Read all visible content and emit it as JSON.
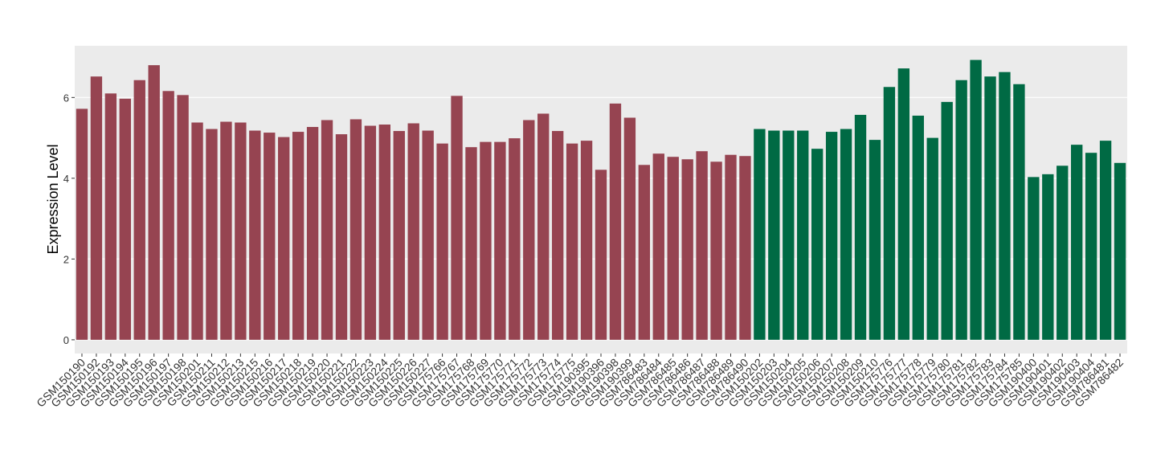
{
  "chart_data": {
    "type": "bar",
    "y_label": "Expression Level",
    "categories": [
      "GSM150190",
      "GSM150192",
      "GSM150193",
      "GSM150194",
      "GSM150195",
      "GSM150196",
      "GSM150197",
      "GSM150198",
      "GSM150201",
      "GSM150211",
      "GSM150212",
      "GSM150213",
      "GSM150215",
      "GSM150216",
      "GSM150217",
      "GSM150218",
      "GSM150219",
      "GSM150220",
      "GSM150221",
      "GSM150222",
      "GSM150223",
      "GSM150224",
      "GSM150225",
      "GSM150226",
      "GSM150227",
      "GSM175766",
      "GSM175767",
      "GSM175768",
      "GSM175769",
      "GSM175770",
      "GSM175771",
      "GSM175772",
      "GSM175773",
      "GSM175774",
      "GSM175775",
      "GSM190395",
      "GSM190396",
      "GSM190398",
      "GSM190399",
      "GSM786483",
      "GSM786484",
      "GSM786485",
      "GSM786486",
      "GSM786487",
      "GSM786488",
      "GSM786489",
      "GSM786490",
      "GSM150202",
      "GSM150203",
      "GSM150204",
      "GSM150205",
      "GSM150206",
      "GSM150207",
      "GSM150208",
      "GSM150209",
      "GSM150210",
      "GSM175776",
      "GSM175777",
      "GSM175778",
      "GSM175779",
      "GSM175780",
      "GSM175781",
      "GSM175782",
      "GSM175783",
      "GSM175784",
      "GSM175785",
      "GSM190400",
      "GSM190401",
      "GSM190402",
      "GSM190403",
      "GSM190404",
      "GSM786481",
      "GSM786482"
    ],
    "values": [
      5.72,
      6.52,
      6.1,
      5.97,
      6.43,
      6.8,
      6.16,
      6.06,
      5.38,
      5.22,
      5.4,
      5.38,
      5.18,
      5.13,
      5.02,
      5.15,
      5.27,
      5.44,
      5.09,
      5.46,
      5.3,
      5.33,
      5.17,
      5.36,
      5.18,
      4.86,
      6.04,
      4.77,
      4.9,
      4.9,
      4.99,
      5.44,
      5.6,
      5.17,
      4.86,
      4.93,
      4.21,
      5.85,
      5.5,
      4.33,
      4.61,
      4.53,
      4.47,
      4.67,
      4.41,
      4.58,
      4.55,
      5.22,
      5.18,
      5.18,
      5.18,
      4.73,
      5.15,
      5.22,
      5.57,
      4.95,
      6.26,
      6.72,
      5.55,
      5.0,
      5.89,
      6.43,
      6.93,
      6.52,
      6.63,
      6.33,
      4.03,
      4.1,
      4.31,
      4.83,
      4.63,
      4.93,
      4.38
    ],
    "colors": [
      "#964451",
      "#964451",
      "#964451",
      "#964451",
      "#964451",
      "#964451",
      "#964451",
      "#964451",
      "#964451",
      "#964451",
      "#964451",
      "#964451",
      "#964451",
      "#964451",
      "#964451",
      "#964451",
      "#964451",
      "#964451",
      "#964451",
      "#964451",
      "#964451",
      "#964451",
      "#964451",
      "#964451",
      "#964451",
      "#964451",
      "#964451",
      "#964451",
      "#964451",
      "#964451",
      "#964451",
      "#964451",
      "#964451",
      "#964451",
      "#964451",
      "#964451",
      "#964451",
      "#964451",
      "#964451",
      "#964451",
      "#964451",
      "#964451",
      "#964451",
      "#964451",
      "#964451",
      "#964451",
      "#964451",
      "#006a44",
      "#006a44",
      "#006a44",
      "#006a44",
      "#006a44",
      "#006a44",
      "#006a44",
      "#006a44",
      "#006a44",
      "#006a44",
      "#006a44",
      "#006a44",
      "#006a44",
      "#006a44",
      "#006a44",
      "#006a44",
      "#006a44",
      "#006a44",
      "#006a44",
      "#006a44",
      "#006a44",
      "#006a44",
      "#006a44",
      "#006a44",
      "#006a44",
      "#006a44"
    ],
    "ylim": [
      -0.34,
      7.28
    ],
    "yticks": [
      0,
      2,
      4,
      6
    ],
    "grid": true,
    "background": "#ebebeb"
  }
}
